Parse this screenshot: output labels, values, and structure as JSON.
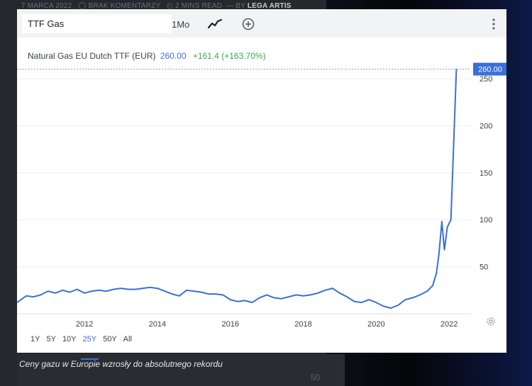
{
  "article_meta": {
    "date": "7 MARCA 2022",
    "comments": "BRAK KOMENTARZY",
    "read": "2 MINS READ",
    "by": "BY",
    "author": "LEGA ARTIS"
  },
  "background_number": "50",
  "caption": "Ceny gazu w Europie wzrosły do absolutnego rekordu",
  "toolbar": {
    "search_value": "TTF Gas",
    "interval": "1Mo",
    "chart_type_icon": "line-chart-icon",
    "compare_icon": "plus-circle-icon",
    "menu_icon": "vertical-dots-icon"
  },
  "legend": {
    "name": "Natural Gas EU Dutch TTF (EUR)",
    "price": "260.00",
    "change": "+161.4 (+163.70%)"
  },
  "ranges": [
    "1Y",
    "5Y",
    "10Y",
    "25Y",
    "50Y",
    "All"
  ],
  "active_range": "25Y",
  "colors": {
    "line": "#3b6fd9",
    "change_positive": "#34a853",
    "last_price_label_bg": "#3b6fd9"
  },
  "chart_data": {
    "type": "line",
    "x_ticks": [
      "2012",
      "2014",
      "2016",
      "2018",
      "2020",
      "2022"
    ],
    "y_ticks": [
      "250",
      "200",
      "150",
      "100",
      "50"
    ],
    "last_price_label": "260.00",
    "xlim": [
      2010.15,
      2022.6
    ],
    "ylim": [
      0,
      262
    ],
    "grid": "horizontal",
    "series": [
      {
        "x": [
          2010.15,
          2010.4,
          2010.6,
          2010.8,
          2011.0,
          2011.2,
          2011.4,
          2011.6,
          2011.8,
          2012.0,
          2012.2,
          2012.4,
          2012.6,
          2012.8,
          2013.0,
          2013.2,
          2013.4,
          2013.6,
          2013.8,
          2014.0,
          2014.2,
          2014.4,
          2014.6,
          2014.8,
          2015.0,
          2015.2,
          2015.4,
          2015.6,
          2015.8,
          2016.0,
          2016.2,
          2016.4,
          2016.6,
          2016.8,
          2017.0,
          2017.2,
          2017.4,
          2017.6,
          2017.8,
          2018.0,
          2018.2,
          2018.4,
          2018.6,
          2018.8,
          2019.0,
          2019.2,
          2019.4,
          2019.6,
          2019.8,
          2020.0,
          2020.2,
          2020.4,
          2020.6,
          2020.8,
          2021.0,
          2021.2,
          2021.4,
          2021.55,
          2021.65,
          2021.72,
          2021.8,
          2021.87,
          2021.95,
          2022.05,
          2022.2
        ],
        "y": [
          12,
          19,
          18,
          20,
          24,
          22,
          25,
          23,
          26,
          22,
          24,
          25,
          24,
          26,
          27,
          26,
          26,
          27,
          28,
          27,
          24,
          21,
          19,
          25,
          24,
          23,
          21,
          21,
          20,
          15,
          13,
          14,
          12,
          17,
          20,
          17,
          16,
          18,
          20,
          19,
          20,
          22,
          25,
          27,
          22,
          18,
          13,
          12,
          15,
          12,
          8,
          6,
          9,
          15,
          17,
          20,
          24,
          30,
          43,
          63,
          98,
          68,
          92,
          100,
          260
        ]
      }
    ]
  }
}
